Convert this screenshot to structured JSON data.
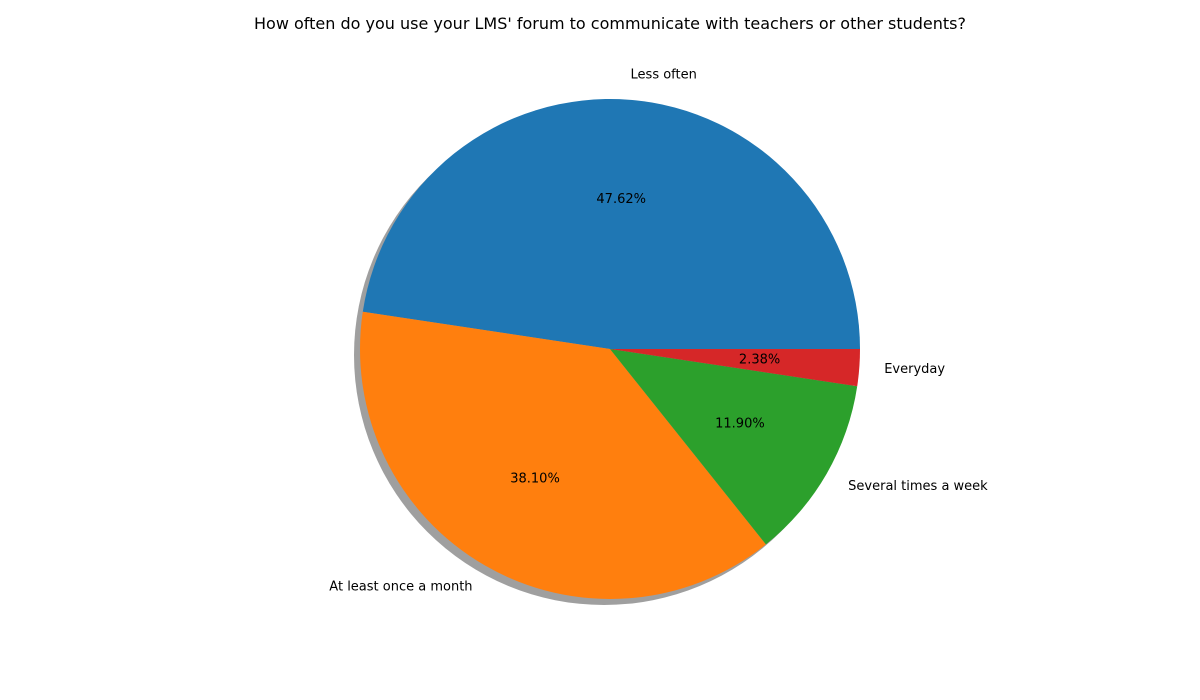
{
  "chart_data": {
    "type": "pie",
    "title": "How often do you use your LMS' forum to communicate with teachers or other students?",
    "slices": [
      {
        "label": "Less often",
        "value": 47.62,
        "pct_label": "47.62%",
        "color": "#1f77b4"
      },
      {
        "label": "At least once a month",
        "value": 38.1,
        "pct_label": "38.10%",
        "color": "#ff7f0e"
      },
      {
        "label": "Several times a week",
        "value": 11.9,
        "pct_label": "11.90%",
        "color": "#2ca02c"
      },
      {
        "label": "Everyday",
        "value": 2.38,
        "pct_label": "2.38%",
        "color": "#d62728"
      }
    ],
    "start_angle_deg": 0,
    "direction": "counterclockwise",
    "shadow": true
  }
}
